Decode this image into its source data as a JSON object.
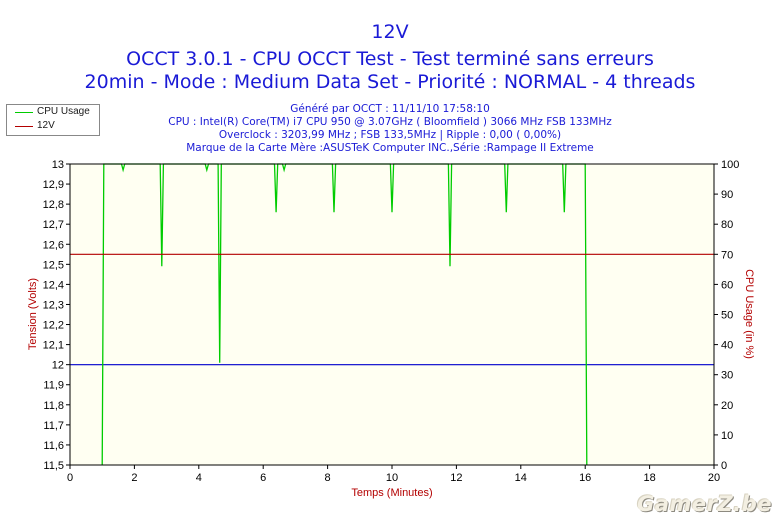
{
  "chart_data": {
    "type": "line",
    "title": "12V",
    "subtitle_lines": [
      "OCCT 3.0.1 - CPU OCCT Test - Test terminé sans erreurs",
      "20min - Mode : Medium Data Set - Priorité : NORMAL - 4 threads"
    ],
    "info_lines": [
      "Généré par OCCT : 11/11/10 17:58:10",
      "CPU : Intel(R) Core(TM) i7 CPU 950 @ 3.07GHz ( Bloomfield ) 3066 MHz FSB 133MHz",
      "Overclock : 3203,99 MHz ; FSB 133,5MHz | Ripple : 0,00 ( 0,00%)",
      "Marque de la Carte Mère :ASUSTeK Computer INC.,Série :Rampage II Extreme"
    ],
    "xlabel": "Temps (Minutes)",
    "ylabel": "Tension (Volts)",
    "y2label": "CPU Usage (in %)",
    "xlim": [
      0,
      20
    ],
    "ylim": [
      11.5,
      13
    ],
    "y2lim": [
      0,
      100
    ],
    "x_ticks": [
      "0",
      "2",
      "4",
      "6",
      "8",
      "10",
      "12",
      "14",
      "16",
      "18",
      "20"
    ],
    "y_ticks": [
      "11,5",
      "11,6",
      "11,7",
      "11,8",
      "11,9",
      "12",
      "12,1",
      "12,2",
      "12,3",
      "12,4",
      "12,5",
      "12,6",
      "12,7",
      "12,8",
      "12,9",
      "13"
    ],
    "y2_ticks": [
      "0",
      "10",
      "20",
      "30",
      "40",
      "50",
      "60",
      "70",
      "80",
      "90",
      "100"
    ],
    "grid": false,
    "legend_position": "top-left",
    "reference_line_y": 12,
    "series": [
      {
        "name": "CPU Usage",
        "axis": "right",
        "color": "#00cc00",
        "points": [
          [
            1.0,
            0
          ],
          [
            1.05,
            100
          ],
          [
            1.6,
            100
          ],
          [
            1.65,
            98
          ],
          [
            1.7,
            100
          ],
          [
            2.8,
            100
          ],
          [
            2.85,
            66
          ],
          [
            2.9,
            100
          ],
          [
            4.2,
            100
          ],
          [
            4.25,
            98
          ],
          [
            4.3,
            100
          ],
          [
            4.6,
            100
          ],
          [
            4.65,
            34
          ],
          [
            4.7,
            100
          ],
          [
            6.35,
            100
          ],
          [
            6.4,
            84
          ],
          [
            6.45,
            100
          ],
          [
            6.6,
            100
          ],
          [
            6.65,
            98
          ],
          [
            6.7,
            100
          ],
          [
            8.15,
            100
          ],
          [
            8.2,
            84
          ],
          [
            8.25,
            100
          ],
          [
            9.95,
            100
          ],
          [
            10.0,
            84
          ],
          [
            10.05,
            100
          ],
          [
            11.75,
            100
          ],
          [
            11.8,
            66
          ],
          [
            11.85,
            100
          ],
          [
            13.5,
            100
          ],
          [
            13.55,
            84
          ],
          [
            13.6,
            100
          ],
          [
            15.3,
            100
          ],
          [
            15.35,
            84
          ],
          [
            15.4,
            100
          ],
          [
            16.0,
            100
          ],
          [
            16.05,
            0
          ]
        ]
      },
      {
        "name": "12V",
        "axis": "left",
        "color": "#b30000",
        "points": [
          [
            0,
            12.55
          ],
          [
            20,
            12.55
          ]
        ]
      }
    ]
  },
  "watermark": "GamerZ.be"
}
